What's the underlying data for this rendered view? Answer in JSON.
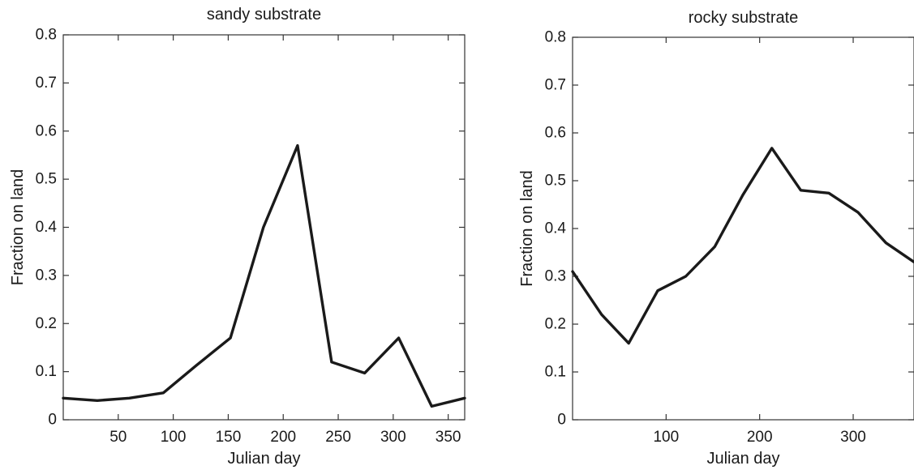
{
  "chart_data": [
    {
      "type": "line",
      "title": "sandy substrate",
      "xlabel": "Julian day",
      "ylabel": "Fraction on land",
      "xlim": [
        0,
        365
      ],
      "ylim": [
        0,
        0.8
      ],
      "xticks": [
        50,
        100,
        150,
        200,
        250,
        300,
        350
      ],
      "yticks": [
        0,
        0.1,
        0.2,
        0.3,
        0.4,
        0.5,
        0.6,
        0.7,
        0.8
      ],
      "xtick_labels": [
        "50",
        "100",
        "150",
        "200",
        "250",
        "300",
        "350"
      ],
      "ytick_labels": [
        "0",
        "0.1",
        "0.2",
        "0.3",
        "0.4",
        "0.5",
        "0.6",
        "0.7",
        "0.8"
      ],
      "grid": false,
      "x": [
        0,
        31,
        60,
        91,
        121,
        152,
        182,
        213,
        244,
        274,
        305,
        335,
        365
      ],
      "y": [
        0.045,
        0.04,
        0.045,
        0.056,
        0.113,
        0.17,
        0.4,
        0.57,
        0.12,
        0.097,
        0.17,
        0.028,
        0.045
      ]
    },
    {
      "type": "line",
      "title": "rocky substrate",
      "xlabel": "Julian day",
      "ylabel": "Fraction on land",
      "xlim": [
        0,
        365
      ],
      "ylim": [
        0,
        0.8
      ],
      "xticks": [
        100,
        200,
        300
      ],
      "yticks": [
        0,
        0.1,
        0.2,
        0.3,
        0.4,
        0.5,
        0.6,
        0.7,
        0.8
      ],
      "xtick_labels": [
        "100",
        "200",
        "300"
      ],
      "ytick_labels": [
        "0",
        "0.1",
        "0.2",
        "0.3",
        "0.4",
        "0.5",
        "0.6",
        "0.7",
        "0.8"
      ],
      "grid": false,
      "x": [
        0,
        31,
        60,
        91,
        121,
        152,
        182,
        213,
        244,
        274,
        305,
        335,
        365
      ],
      "y": [
        0.31,
        0.22,
        0.16,
        0.27,
        0.3,
        0.362,
        0.47,
        0.568,
        0.48,
        0.474,
        0.434,
        0.37,
        0.33
      ]
    }
  ]
}
